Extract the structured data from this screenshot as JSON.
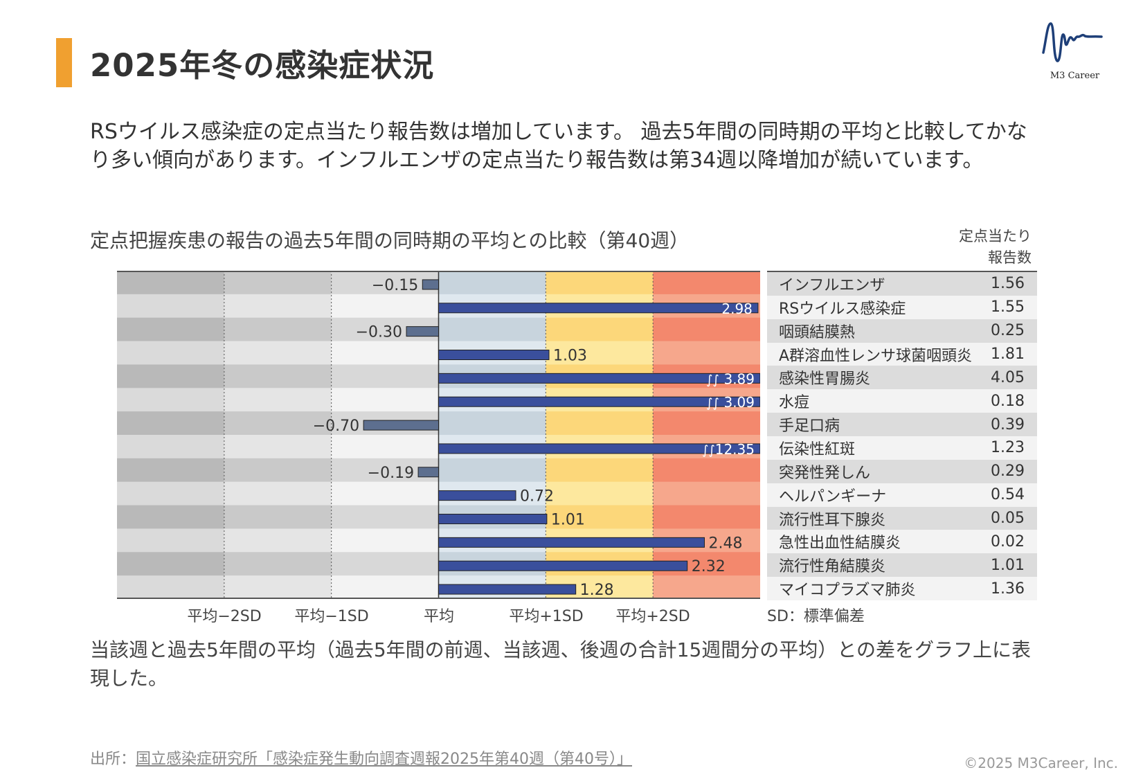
{
  "header": {
    "title": "2025年冬の感染症状況",
    "logo_text": "M3 Career",
    "accent_color": "#f0a030"
  },
  "intro": "RSウイルス感染症の定点当たり報告数は増加しています。 過去5年間の同時期の平均と比較してかなり多い傾向があります。インフルエンザの定点当たり報告数は第34週以降増加が続いています。",
  "chart_data": {
    "type": "bar",
    "orientation": "horizontal",
    "title": "定点把握疾患の報告の過去5年間の同時期の平均との比較（第40週）",
    "categories": [
      "インフルエンザ",
      "RSウイルス感染症",
      "咽頭結膜熱",
      "A群溶血性レンサ球菌咽頭炎",
      "感染性胃腸炎",
      "水痘",
      "手足口病",
      "伝染性紅斑",
      "突発性発しん",
      "ヘルパンギーナ",
      "流行性耳下腺炎",
      "急性出血性結膜炎",
      "流行性角結膜炎",
      "マイコプラズマ肺炎"
    ],
    "values": [
      -0.15,
      2.98,
      -0.3,
      1.03,
      3.89,
      3.09,
      -0.7,
      12.35,
      -0.19,
      0.72,
      1.01,
      2.48,
      2.32,
      1.28
    ],
    "value_labels": [
      "−0.15",
      "2.98",
      "−0.30",
      "1.03",
      "3.89",
      "3.09",
      "−0.70",
      "12.35",
      "−0.19",
      "0.72",
      "1.01",
      "2.48",
      "2.32",
      "1.28"
    ],
    "axis_broken": [
      false,
      false,
      false,
      false,
      true,
      true,
      false,
      true,
      false,
      false,
      false,
      false,
      false,
      false
    ],
    "xlim": [
      -3,
      3
    ],
    "x_tick_labels": [
      "平均−2SD",
      "平均−1SD",
      "平均",
      "平均+1SD",
      "平均+2SD"
    ],
    "x_tick_values": [
      -2,
      -1,
      0,
      1,
      2
    ],
    "zone_colors": {
      "below_mean": "#d0d0d0",
      "mean_to_1sd": "#cdd9e1",
      "1sd_to_2sd": "#fcd980",
      "above_2sd": "#f38c72"
    },
    "bar_color_positive": "#3a4f9c",
    "bar_color_negative": "#5d6f8f",
    "table_header": "定点当たり 報告数",
    "table_header_lines": [
      "定点当たり",
      "報告数"
    ],
    "table_values": [
      "1.56",
      "1.55",
      "0.25",
      "1.81",
      "4.05",
      "0.18",
      "0.39",
      "1.23",
      "0.29",
      "0.54",
      "0.05",
      "0.02",
      "1.01",
      "1.36"
    ],
    "sd_note": "SD：標準偏差",
    "grid": true
  },
  "note": "当該週と過去5年間の平均（過去5年間の前週、当該週、後週の合計15週間分の平均）との差をグラフ上に表現した。",
  "footer": {
    "source_prefix": "出所：",
    "source_link": "国立感染症研究所「感染症発生動向調査週報2025年第40週（第40号）」",
    "copyright": "©2025 M3Career, Inc."
  }
}
